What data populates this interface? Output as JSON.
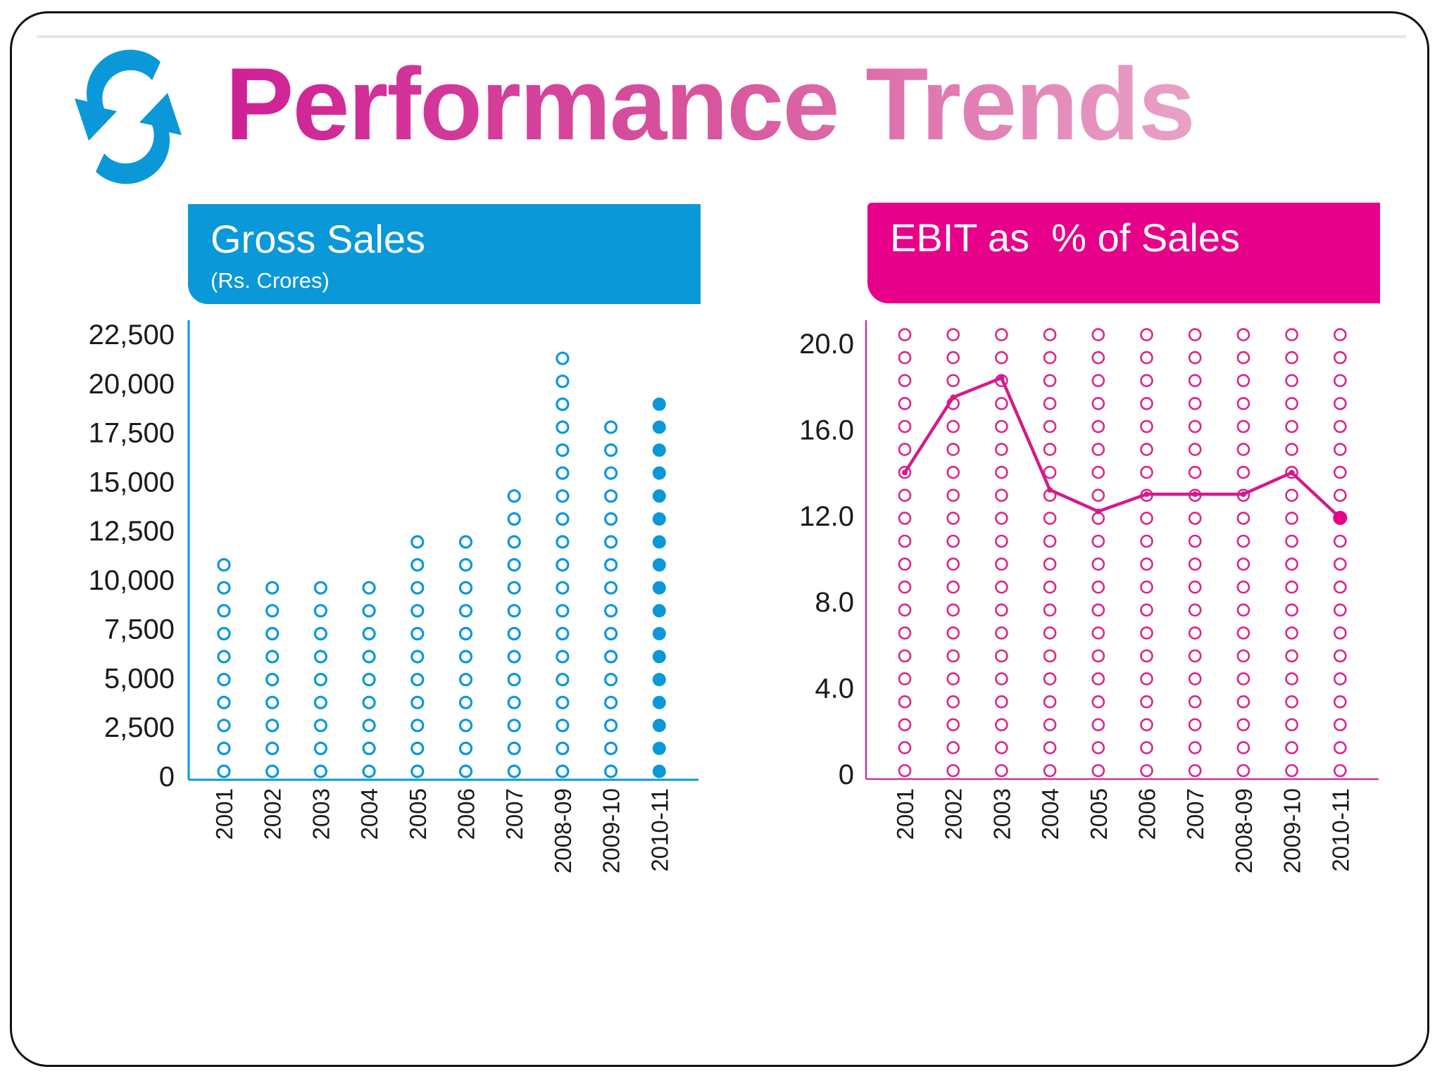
{
  "slide": {
    "title": "Performance Trends",
    "colors": {
      "blue": "#0a98d9",
      "pink": "#e6008a",
      "title_start": "#cf1f96",
      "title_end": "#e9a2c7"
    },
    "logo_icon": "refresh-arrows-icon"
  },
  "chart_data": [
    {
      "type": "bar",
      "style": "dot-column pictogram",
      "title": "Gross Sales",
      "subtitle": "(Rs. Crores)",
      "categories": [
        "2001",
        "2002",
        "2003",
        "2004",
        "2005",
        "2006",
        "2007",
        "2008-09",
        "2009-10",
        "2010-11"
      ],
      "values": [
        12000,
        11000,
        11000,
        11000,
        12300,
        13200,
        14900,
        21800,
        18300,
        20400
      ],
      "highlight_category": "2010-11",
      "yticks": [
        "0",
        "2,500",
        "5,000",
        "7,500",
        "10,000",
        "12,500",
        "15,000",
        "17,500",
        "20,000",
        "22,500"
      ],
      "ylim": [
        0,
        22500
      ],
      "xlabel": "",
      "ylabel": ""
    },
    {
      "type": "line",
      "style": "line over dot grid",
      "title": "EBIT as  % of Sales",
      "categories": [
        "2001",
        "2002",
        "2003",
        "2004",
        "2005",
        "2006",
        "2007",
        "2008-09",
        "2009-10",
        "2010-11"
      ],
      "values": [
        14.0,
        17.5,
        18.4,
        13.2,
        12.2,
        13.0,
        13.0,
        13.0,
        14.0,
        11.9
      ],
      "highlight_category": "2010-11",
      "yticks": [
        "0",
        "4.0",
        "8.0",
        "12.0",
        "16.0",
        "20.0"
      ],
      "ylim": [
        0,
        20
      ],
      "xlabel": "",
      "ylabel": ""
    }
  ]
}
